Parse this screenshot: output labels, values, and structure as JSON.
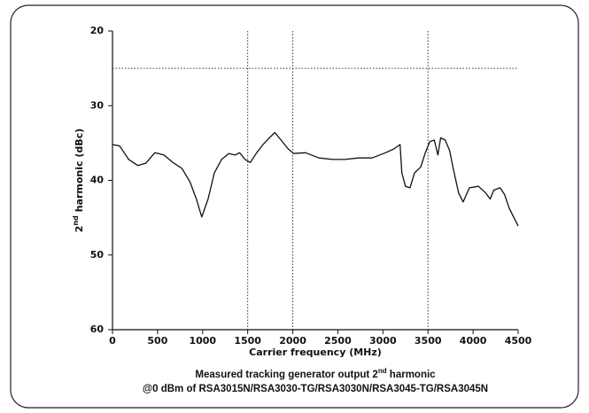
{
  "chart_data": {
    "type": "line",
    "ylabel": {
      "base": "2",
      "sup": "nd",
      "rest": " harmonic (dBc)"
    },
    "xlabel": "Carrier frequency (MHz)",
    "caption": {
      "base": "Measured tracking generator output 2",
      "sup": "nd",
      "rest": " harmonic"
    },
    "subcaption": "@0 dBm of RSA3015N/RSA3030-TG/RSA3030N/RSA3045-TG/RSA3045N",
    "xlim": [
      0,
      4500
    ],
    "xticks": [
      0,
      500,
      1000,
      1500,
      2000,
      2500,
      3000,
      3500,
      4000,
      4500
    ],
    "ylim": [
      20,
      60
    ],
    "y_inverted": true,
    "yticks": [
      20,
      30,
      40,
      50,
      60
    ],
    "ref_x": [
      1500,
      2000,
      3500
    ],
    "ref_y": [
      25
    ],
    "color": "#111111",
    "x": [
      0,
      80,
      180,
      280,
      370,
      470,
      570,
      670,
      770,
      860,
      930,
      990,
      1060,
      1130,
      1210,
      1290,
      1360,
      1410,
      1470,
      1530,
      1600,
      1670,
      1750,
      1800,
      1870,
      1950,
      2010,
      2140,
      2290,
      2440,
      2580,
      2730,
      2880,
      3030,
      3120,
      3190,
      3210,
      3250,
      3300,
      3350,
      3420,
      3470,
      3520,
      3570,
      3610,
      3640,
      3690,
      3740,
      3780,
      3840,
      3890,
      3960,
      4060,
      4140,
      4190,
      4230,
      4300,
      4350,
      4400,
      4450,
      4500
    ],
    "values": [
      35.2,
      35.4,
      37.2,
      38.0,
      37.7,
      36.3,
      36.6,
      37.6,
      38.4,
      40.2,
      42.5,
      44.9,
      42.5,
      39.0,
      37.2,
      36.4,
      36.6,
      36.3,
      37.2,
      37.6,
      36.3,
      35.2,
      34.2,
      33.6,
      34.6,
      35.8,
      36.4,
      36.3,
      37.0,
      37.2,
      37.2,
      37.0,
      37.0,
      36.3,
      35.8,
      35.2,
      39.0,
      40.8,
      41.0,
      39.0,
      38.2,
      36.3,
      34.8,
      34.6,
      36.6,
      34.3,
      34.6,
      36.0,
      38.4,
      41.7,
      42.9,
      41.0,
      40.8,
      41.7,
      42.5,
      41.3,
      41.0,
      41.9,
      43.7,
      44.9,
      46.1
    ]
  }
}
